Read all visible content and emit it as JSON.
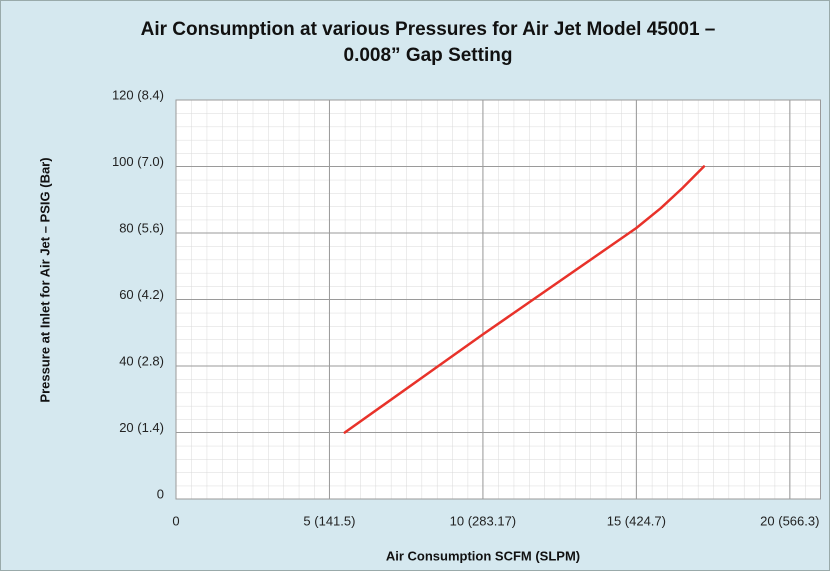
{
  "chart_data": {
    "type": "line",
    "title": [
      "Air Consumption at various Pressures for Air Jet Model 45001 –",
      "0.008” Gap Setting"
    ],
    "x_label": "Air Consumption SCFM (SLPM)",
    "y_label": "Pressure at Inlet for Air Jet – PSIG (Bar)",
    "x": [
      5.5,
      10,
      15,
      15.8,
      16.5,
      17.2
    ],
    "series": [
      {
        "name": "Air Consumption",
        "color": "#e8322a",
        "values": [
          20,
          49.5,
          81.5,
          87.5,
          93.5,
          100
        ]
      }
    ],
    "xlim": [
      0,
      21
    ],
    "xticks": [
      0,
      {
        "value": 5,
        "label": "5 (141.5)"
      },
      {
        "value": 10,
        "label": "10 (283.17)"
      },
      {
        "value": 15,
        "label": "15 (424.7)"
      },
      {
        "value": 20,
        "label": "20 (566.3)"
      }
    ],
    "ylim": [
      0,
      120
    ],
    "yticks": [
      0,
      {
        "value": 20,
        "label": "20 (1.4)"
      },
      {
        "value": 40,
        "label": "40 (2.8)"
      },
      {
        "value": 60,
        "label": "60 (4.2)"
      },
      {
        "value": 80,
        "label": "80 (5.6)"
      },
      {
        "value": 100,
        "label": "100 (7.0)"
      },
      {
        "value": 120,
        "label": "120 (8.4)"
      }
    ],
    "grid": true
  }
}
